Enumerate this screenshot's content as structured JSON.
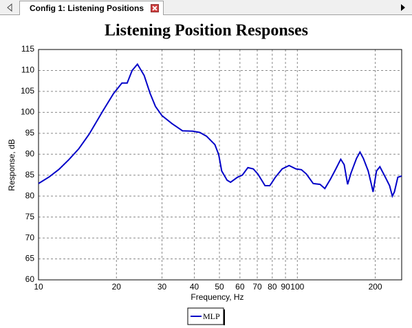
{
  "tab": {
    "title": "Config 1: Listening Positions"
  },
  "chart_data": {
    "type": "line",
    "title": "Listening Position Responses",
    "xlabel": "Frequency, Hz",
    "ylabel": "Response, dB",
    "xscale": "log",
    "grid": true,
    "legend": "bottom",
    "xlim": [
      10,
      253
    ],
    "ylim": [
      60,
      115
    ],
    "xticks": [
      10,
      20,
      30,
      40,
      50,
      60,
      70,
      80,
      90,
      100,
      200
    ],
    "yticks": [
      60,
      65,
      70,
      75,
      80,
      85,
      90,
      95,
      100,
      105,
      110,
      115
    ],
    "x": [
      10,
      11,
      12,
      13.1,
      14.3,
      15.7,
      17.8,
      19.5,
      21,
      22,
      23,
      24.1,
      25.6,
      27,
      28.3,
      30,
      32.8,
      36,
      39.4,
      42,
      44.6,
      48,
      49.7,
      51,
      53.5,
      55.2,
      58.7,
      61.3,
      64.4,
      67.6,
      70.5,
      75,
      78.3,
      82.2,
      87.4,
      92.9,
      98.8,
      103.7,
      108.3,
      115.2,
      122.4,
      127.7,
      134.1,
      140.9,
      147.1,
      151.7,
      156.4,
      161.2,
      169.3,
      174.6,
      179.9,
      187.8,
      193.7,
      196.2,
      202.2,
      208.4,
      218.8,
      227.1,
      232.8,
      237.1,
      244.5,
      253
    ],
    "series": [
      {
        "name": "MLP",
        "color": "#0000c8",
        "values": [
          83,
          84.6,
          86.4,
          88.7,
          91.3,
          94.8,
          100.5,
          104.5,
          107,
          107,
          110,
          111.5,
          108.8,
          104.5,
          101.4,
          99.2,
          97.3,
          95.6,
          95.5,
          95.2,
          94.3,
          92.3,
          89.9,
          86,
          83.8,
          83.3,
          84.5,
          85,
          86.8,
          86.5,
          85.2,
          82.5,
          82.5,
          84.5,
          86.5,
          87.3,
          86.5,
          86.3,
          85.3,
          83,
          82.8,
          81.8,
          84,
          86.5,
          88.8,
          87.5,
          82.8,
          85.5,
          89,
          90.5,
          89,
          86,
          82.5,
          81,
          86,
          87,
          84.5,
          82.5,
          80,
          81,
          84.5,
          84.8
        ]
      }
    ]
  }
}
